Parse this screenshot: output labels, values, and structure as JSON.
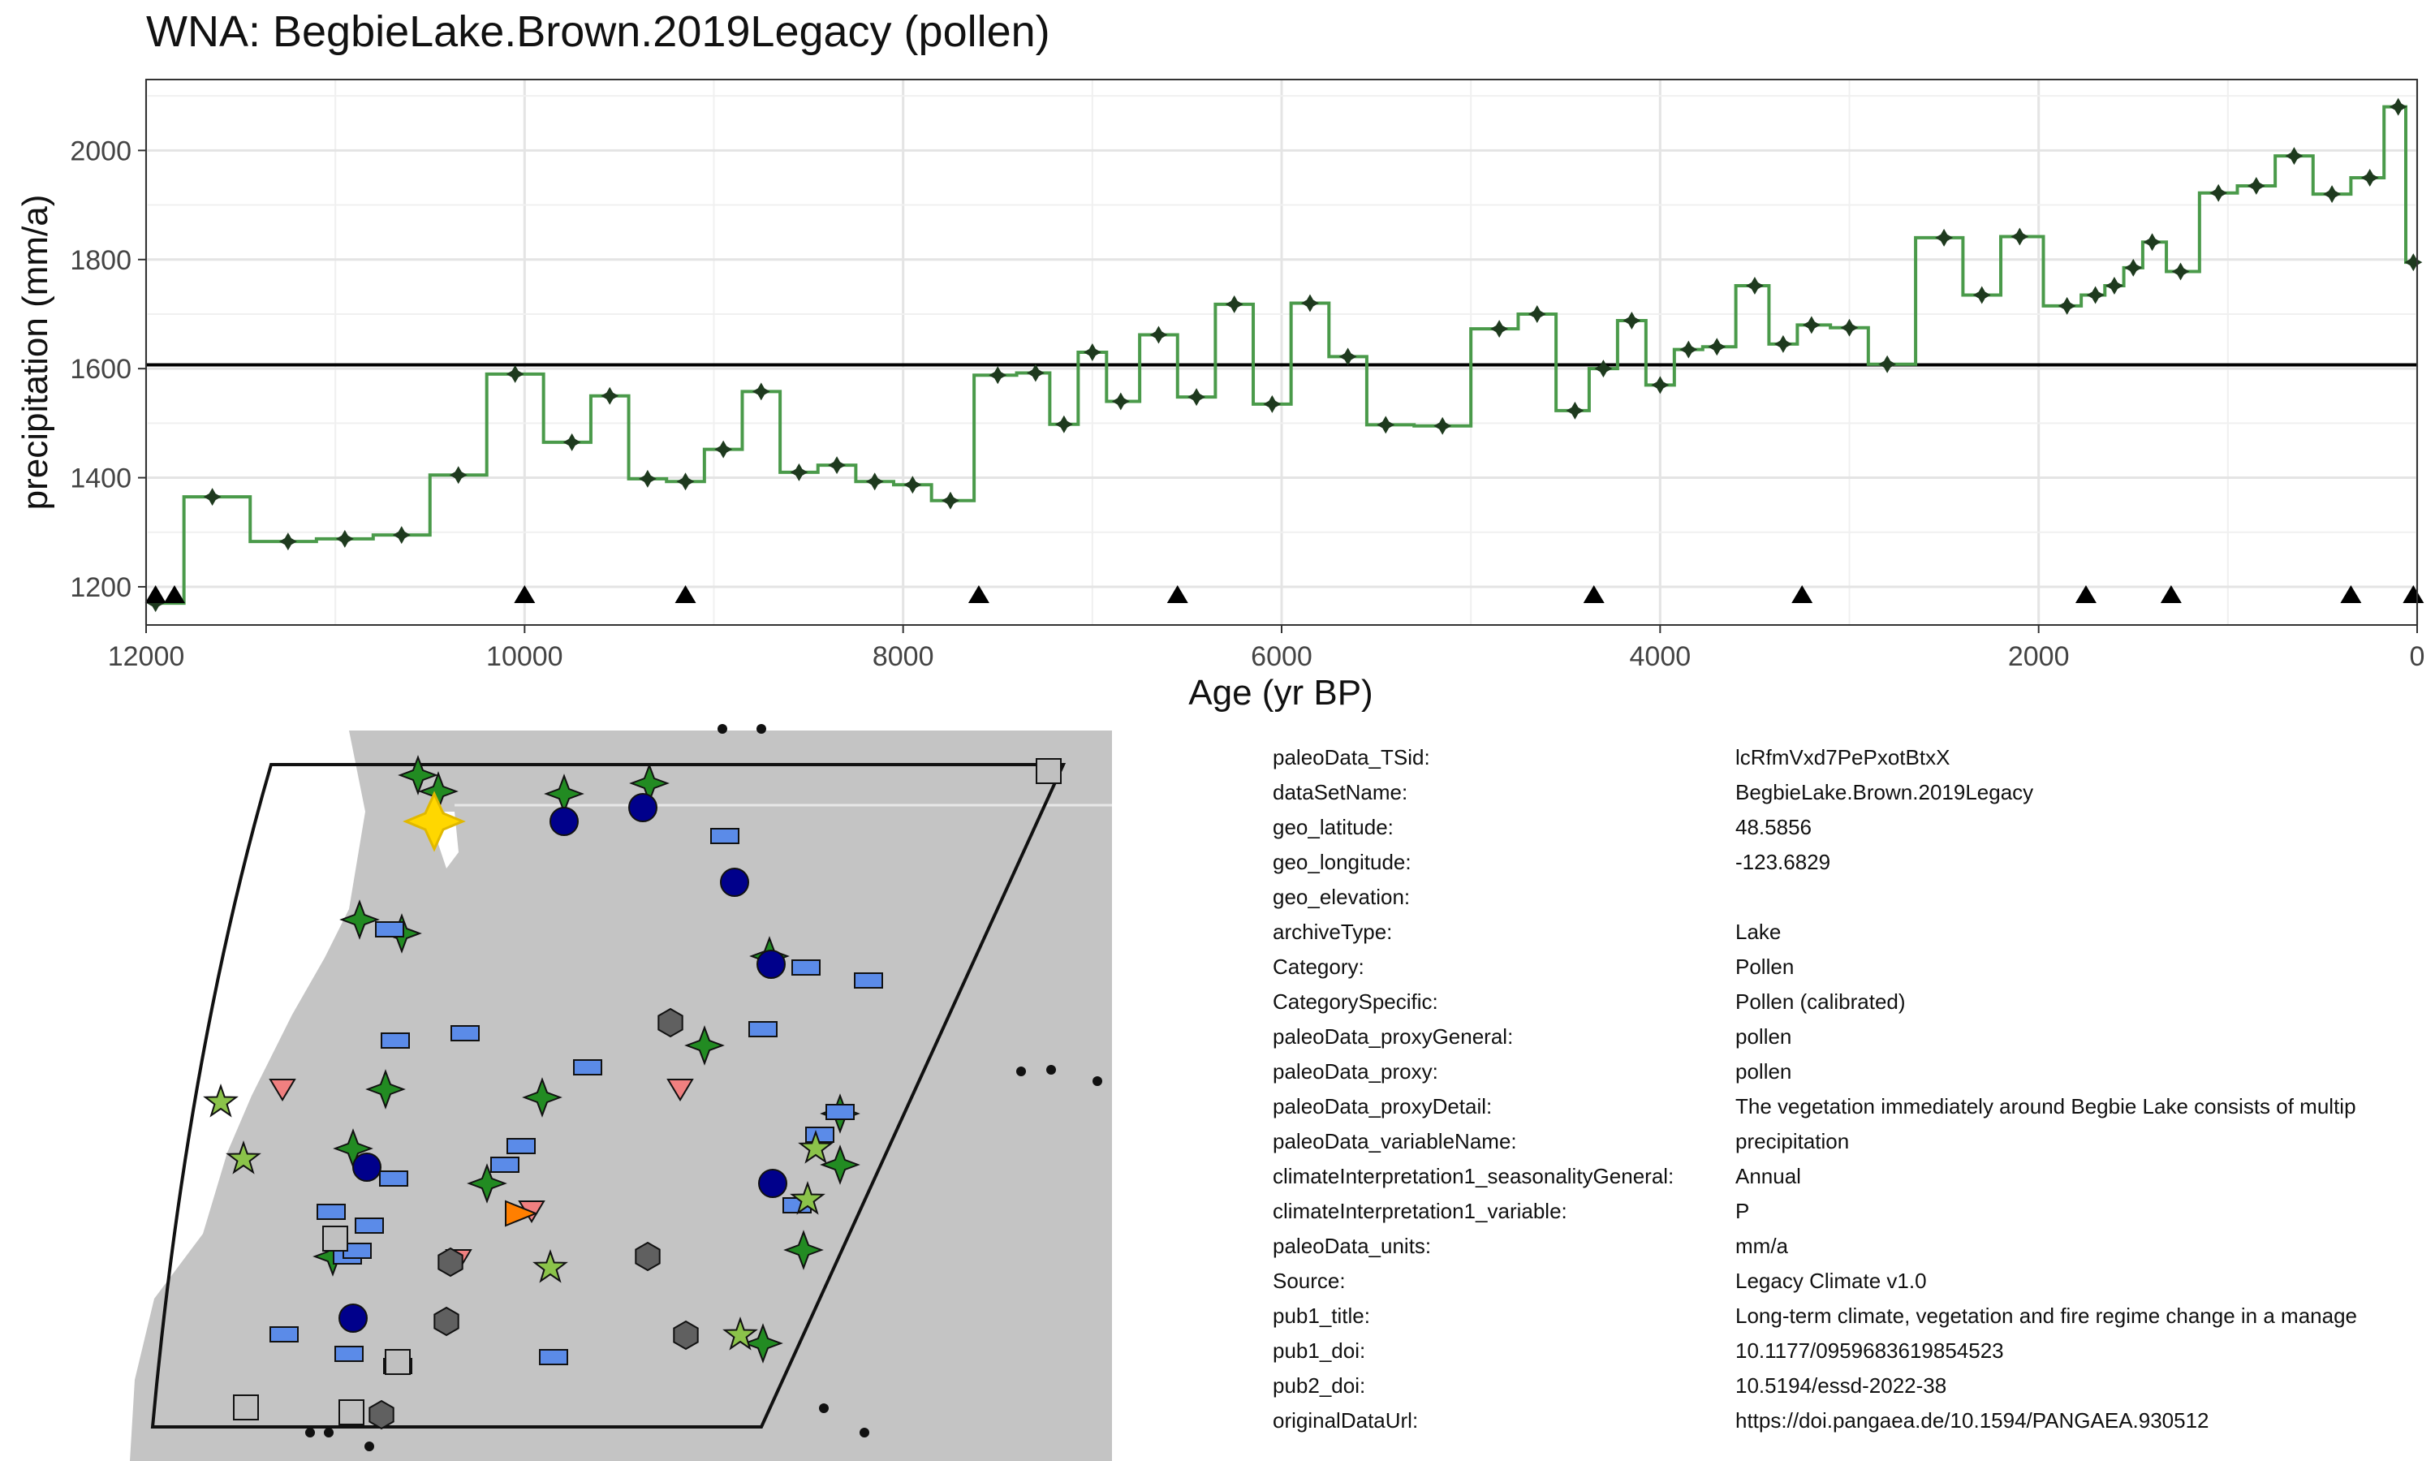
{
  "chart_data": {
    "type": "line",
    "title": "WNA: BegbieLake.Brown.2019Legacy (pollen)",
    "xlabel": "Age (yr BP)",
    "ylabel": "precipitation (mm/a)",
    "xlim": [
      12000,
      0
    ],
    "ylim": [
      1130,
      2130
    ],
    "x_ticks": [
      12000,
      10000,
      8000,
      6000,
      4000,
      2000,
      0
    ],
    "y_ticks": [
      1200,
      1400,
      1600,
      1800,
      2000
    ],
    "grid": true,
    "reference_line": 1607,
    "series": [
      {
        "style": "step",
        "color": "#4a9a4a",
        "x": [
          11950,
          11650,
          11250,
          10950,
          10650,
          10350,
          10050,
          9750,
          9550,
          9350,
          9150,
          8950,
          8750,
          8550,
          8350,
          8150,
          7950,
          7750,
          7500,
          7300,
          7150,
          7000,
          6850,
          6650,
          6450,
          6250,
          6050,
          5850,
          5650,
          5450,
          5150,
          4850,
          4650,
          4450,
          4300,
          4150,
          4000,
          3850,
          3700,
          3500,
          3350,
          3200,
          3000,
          2800,
          2500,
          2300,
          2100,
          1850,
          1700,
          1600,
          1500,
          1400,
          1250,
          1050,
          850,
          650,
          450,
          250,
          100,
          20
        ],
        "y": [
          1170,
          1365,
          1283,
          1288,
          1295,
          1405,
          1590,
          1465,
          1550,
          1398,
          1393,
          1452,
          1558,
          1410,
          1423,
          1393,
          1387,
          1358,
          1588,
          1592,
          1498,
          1630,
          1540,
          1662,
          1548,
          1718,
          1535,
          1720,
          1622,
          1497,
          1495,
          1673,
          1700,
          1523,
          1600,
          1688,
          1570,
          1635,
          1640,
          1752,
          1645,
          1680,
          1675,
          1608,
          1840,
          1735,
          1842,
          1715,
          1735,
          1752,
          1785,
          1832,
          1778,
          1922,
          1935,
          1990,
          1920,
          1950,
          2080,
          1795
        ]
      }
    ],
    "markers": {
      "style": "up-triangle",
      "x": [
        11950,
        11850,
        10000,
        9150,
        7600,
        6550,
        4350,
        3250,
        1750,
        1300,
        350,
        20
      ]
    }
  },
  "map": {
    "land_color": "#c4c4c4",
    "highlight_color": "#ffd700",
    "symbols": [
      {
        "shape": "star4",
        "color": "#228b22"
      },
      {
        "shape": "circle",
        "color": "#00008b"
      },
      {
        "shape": "rect",
        "color": "#5b8be8"
      },
      {
        "shape": "star5",
        "color": "#8bc34a"
      },
      {
        "shape": "tri-down",
        "color": "#f08080"
      },
      {
        "shape": "hexagon",
        "color": "#606060"
      },
      {
        "shape": "square",
        "color": "#c0c0c0"
      },
      {
        "shape": "tri-right",
        "color": "#ff7f00"
      }
    ]
  },
  "metadata": [
    {
      "key": "paleoData_TSid:",
      "value": "lcRfmVxd7PePxotBtxX"
    },
    {
      "key": "dataSetName:",
      "value": "BegbieLake.Brown.2019Legacy"
    },
    {
      "key": "geo_latitude:",
      "value": "48.5856"
    },
    {
      "key": "geo_longitude:",
      "value": "-123.6829"
    },
    {
      "key": "geo_elevation:",
      "value": ""
    },
    {
      "key": "archiveType:",
      "value": "Lake"
    },
    {
      "key": "Category:",
      "value": "Pollen"
    },
    {
      "key": "CategorySpecific:",
      "value": "Pollen (calibrated)"
    },
    {
      "key": "paleoData_proxyGeneral:",
      "value": "pollen"
    },
    {
      "key": "paleoData_proxy:",
      "value": "pollen"
    },
    {
      "key": "paleoData_proxyDetail:",
      "value": "The vegetation immediately around Begbie Lake consists of multip"
    },
    {
      "key": "paleoData_variableName:",
      "value": "precipitation"
    },
    {
      "key": "climateInterpretation1_seasonalityGeneral:",
      "value": "Annual"
    },
    {
      "key": "climateInterpretation1_variable:",
      "value": "P"
    },
    {
      "key": "paleoData_units:",
      "value": "mm/a"
    },
    {
      "key": "Source:",
      "value": "Legacy Climate v1.0"
    },
    {
      "key": "pub1_title:",
      "value": "Long-term climate, vegetation and fire regime change in a manage"
    },
    {
      "key": "pub1_doi:",
      "value": "10.1177/0959683619854523"
    },
    {
      "key": "pub2_doi:",
      "value": "10.5194/essd-2022-38"
    },
    {
      "key": "originalDataUrl:",
      "value": "https://doi.pangaea.de/10.1594/PANGAEA.930512"
    }
  ]
}
